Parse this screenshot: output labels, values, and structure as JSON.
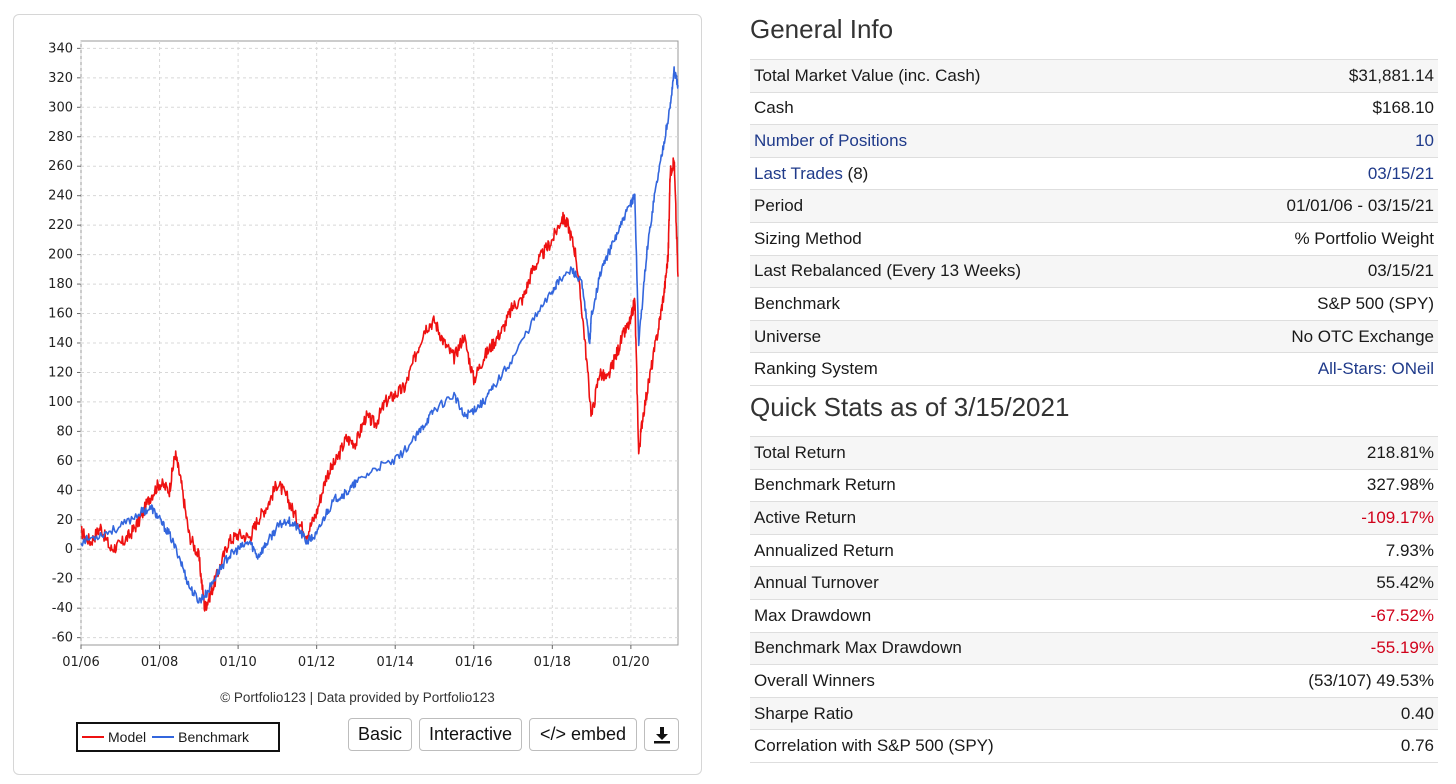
{
  "chart_data": {
    "type": "line",
    "x_ticks": [
      "01/06",
      "01/08",
      "01/10",
      "01/12",
      "01/14",
      "01/16",
      "01/18",
      "01/20"
    ],
    "y_ticks": [
      340,
      320,
      300,
      280,
      260,
      240,
      220,
      200,
      180,
      160,
      140,
      120,
      100,
      80,
      60,
      40,
      20,
      0,
      -20,
      -40,
      -60
    ],
    "ylim": [
      -65,
      345
    ],
    "xlim": [
      2006.0,
      2021.2
    ],
    "grid": true,
    "series": [
      {
        "name": "Model",
        "color": "#ee1111",
        "x": [
          2006.0,
          2006.25,
          2006.5,
          2006.75,
          2007.0,
          2007.25,
          2007.5,
          2007.75,
          2008.0,
          2008.25,
          2008.4,
          2008.55,
          2008.75,
          2009.0,
          2009.15,
          2009.3,
          2009.5,
          2009.75,
          2010.0,
          2010.3,
          2010.5,
          2010.75,
          2011.0,
          2011.25,
          2011.5,
          2011.75,
          2012.0,
          2012.25,
          2012.5,
          2012.75,
          2013.0,
          2013.25,
          2013.5,
          2013.75,
          2014.0,
          2014.25,
          2014.5,
          2014.75,
          2015.0,
          2015.25,
          2015.5,
          2015.75,
          2016.0,
          2016.25,
          2016.5,
          2016.75,
          2017.0,
          2017.25,
          2017.5,
          2017.75,
          2018.0,
          2018.25,
          2018.4,
          2018.6,
          2018.8,
          2019.0,
          2019.2,
          2019.4,
          2019.6,
          2019.8,
          2020.0,
          2020.1,
          2020.2,
          2020.3,
          2020.5,
          2020.7,
          2020.85,
          2020.95,
          2021.0,
          2021.1,
          2021.2
        ],
        "values": [
          12,
          5,
          15,
          0,
          3,
          10,
          20,
          35,
          45,
          40,
          65,
          45,
          10,
          -5,
          -40,
          -30,
          -15,
          5,
          10,
          8,
          20,
          30,
          45,
          35,
          20,
          10,
          25,
          50,
          60,
          75,
          72,
          90,
          85,
          100,
          105,
          110,
          130,
          150,
          155,
          140,
          130,
          145,
          115,
          130,
          140,
          150,
          165,
          170,
          190,
          200,
          210,
          225,
          220,
          200,
          150,
          90,
          120,
          115,
          130,
          145,
          155,
          170,
          65,
          90,
          120,
          150,
          175,
          200,
          255,
          265,
          185
        ]
      },
      {
        "name": "Benchmark",
        "color": "#3366dd",
        "x": [
          2006.0,
          2006.5,
          2007.0,
          2007.5,
          2007.8,
          2008.0,
          2008.25,
          2008.5,
          2008.75,
          2009.0,
          2009.2,
          2009.5,
          2009.75,
          2010.0,
          2010.3,
          2010.5,
          2010.75,
          2011.0,
          2011.25,
          2011.5,
          2011.75,
          2012.0,
          2012.25,
          2012.5,
          2012.75,
          2013.0,
          2013.5,
          2014.0,
          2014.5,
          2014.75,
          2015.0,
          2015.5,
          2015.75,
          2016.0,
          2016.25,
          2016.5,
          2017.0,
          2017.5,
          2018.0,
          2018.1,
          2018.5,
          2018.75,
          2018.95,
          2019.0,
          2019.25,
          2019.5,
          2019.75,
          2020.0,
          2020.1,
          2020.2,
          2020.4,
          2020.6,
          2020.8,
          2021.0,
          2021.1,
          2021.2
        ],
        "values": [
          5,
          10,
          15,
          25,
          28,
          20,
          10,
          -5,
          -25,
          -35,
          -30,
          -15,
          -5,
          0,
          5,
          -5,
          5,
          15,
          20,
          15,
          5,
          10,
          25,
          35,
          38,
          45,
          55,
          60,
          75,
          85,
          95,
          105,
          90,
          95,
          100,
          110,
          130,
          155,
          175,
          180,
          190,
          180,
          140,
          160,
          190,
          205,
          220,
          235,
          240,
          140,
          200,
          240,
          270,
          300,
          325,
          315
        ]
      }
    ]
  },
  "copyright": "© Portfolio123 | Data provided by Portfolio123",
  "legend": {
    "model_label": "Model",
    "benchmark_label": "Benchmark"
  },
  "buttons": {
    "basic": "Basic",
    "interactive": "Interactive",
    "embed": "</> embed"
  },
  "general_info": {
    "title": "General Info",
    "rows": [
      {
        "label": "Total Market Value (inc. Cash)",
        "value": "$31,881.14"
      },
      {
        "label": "Cash",
        "value": "$168.10"
      },
      {
        "label": "Number of Positions",
        "value": "10"
      },
      {
        "label": "Last Trades",
        "label_suffix": " (8)",
        "value": "03/15/21"
      },
      {
        "label": "Period",
        "value": "01/01/06 - 03/15/21"
      },
      {
        "label": "Sizing Method",
        "value": "% Portfolio Weight"
      },
      {
        "label": "Last Rebalanced (Every 13 Weeks)",
        "value": "03/15/21"
      },
      {
        "label": "Benchmark",
        "value": "S&P 500 (SPY)"
      },
      {
        "label": "Universe",
        "value": "No OTC Exchange"
      },
      {
        "label": "Ranking System",
        "value": "All-Stars: ONeil"
      }
    ]
  },
  "quick_stats": {
    "title": "Quick Stats as of 3/15/2021",
    "rows": [
      {
        "label": "Total Return",
        "value": "218.81%"
      },
      {
        "label": "Benchmark Return",
        "value": "327.98%"
      },
      {
        "label": "Active Return",
        "value": "-109.17%"
      },
      {
        "label": "Annualized Return",
        "value": "7.93%"
      },
      {
        "label": "Annual Turnover",
        "value": "55.42%"
      },
      {
        "label": "Max Drawdown",
        "value": "-67.52%"
      },
      {
        "label": "Benchmark Max Drawdown",
        "value": "-55.19%"
      },
      {
        "label": "Overall Winners",
        "value": "(53/107) 49.53%"
      },
      {
        "label": "Sharpe Ratio",
        "value": "0.40"
      },
      {
        "label": "Correlation with S&P 500 (SPY)",
        "value": "0.76"
      }
    ]
  }
}
